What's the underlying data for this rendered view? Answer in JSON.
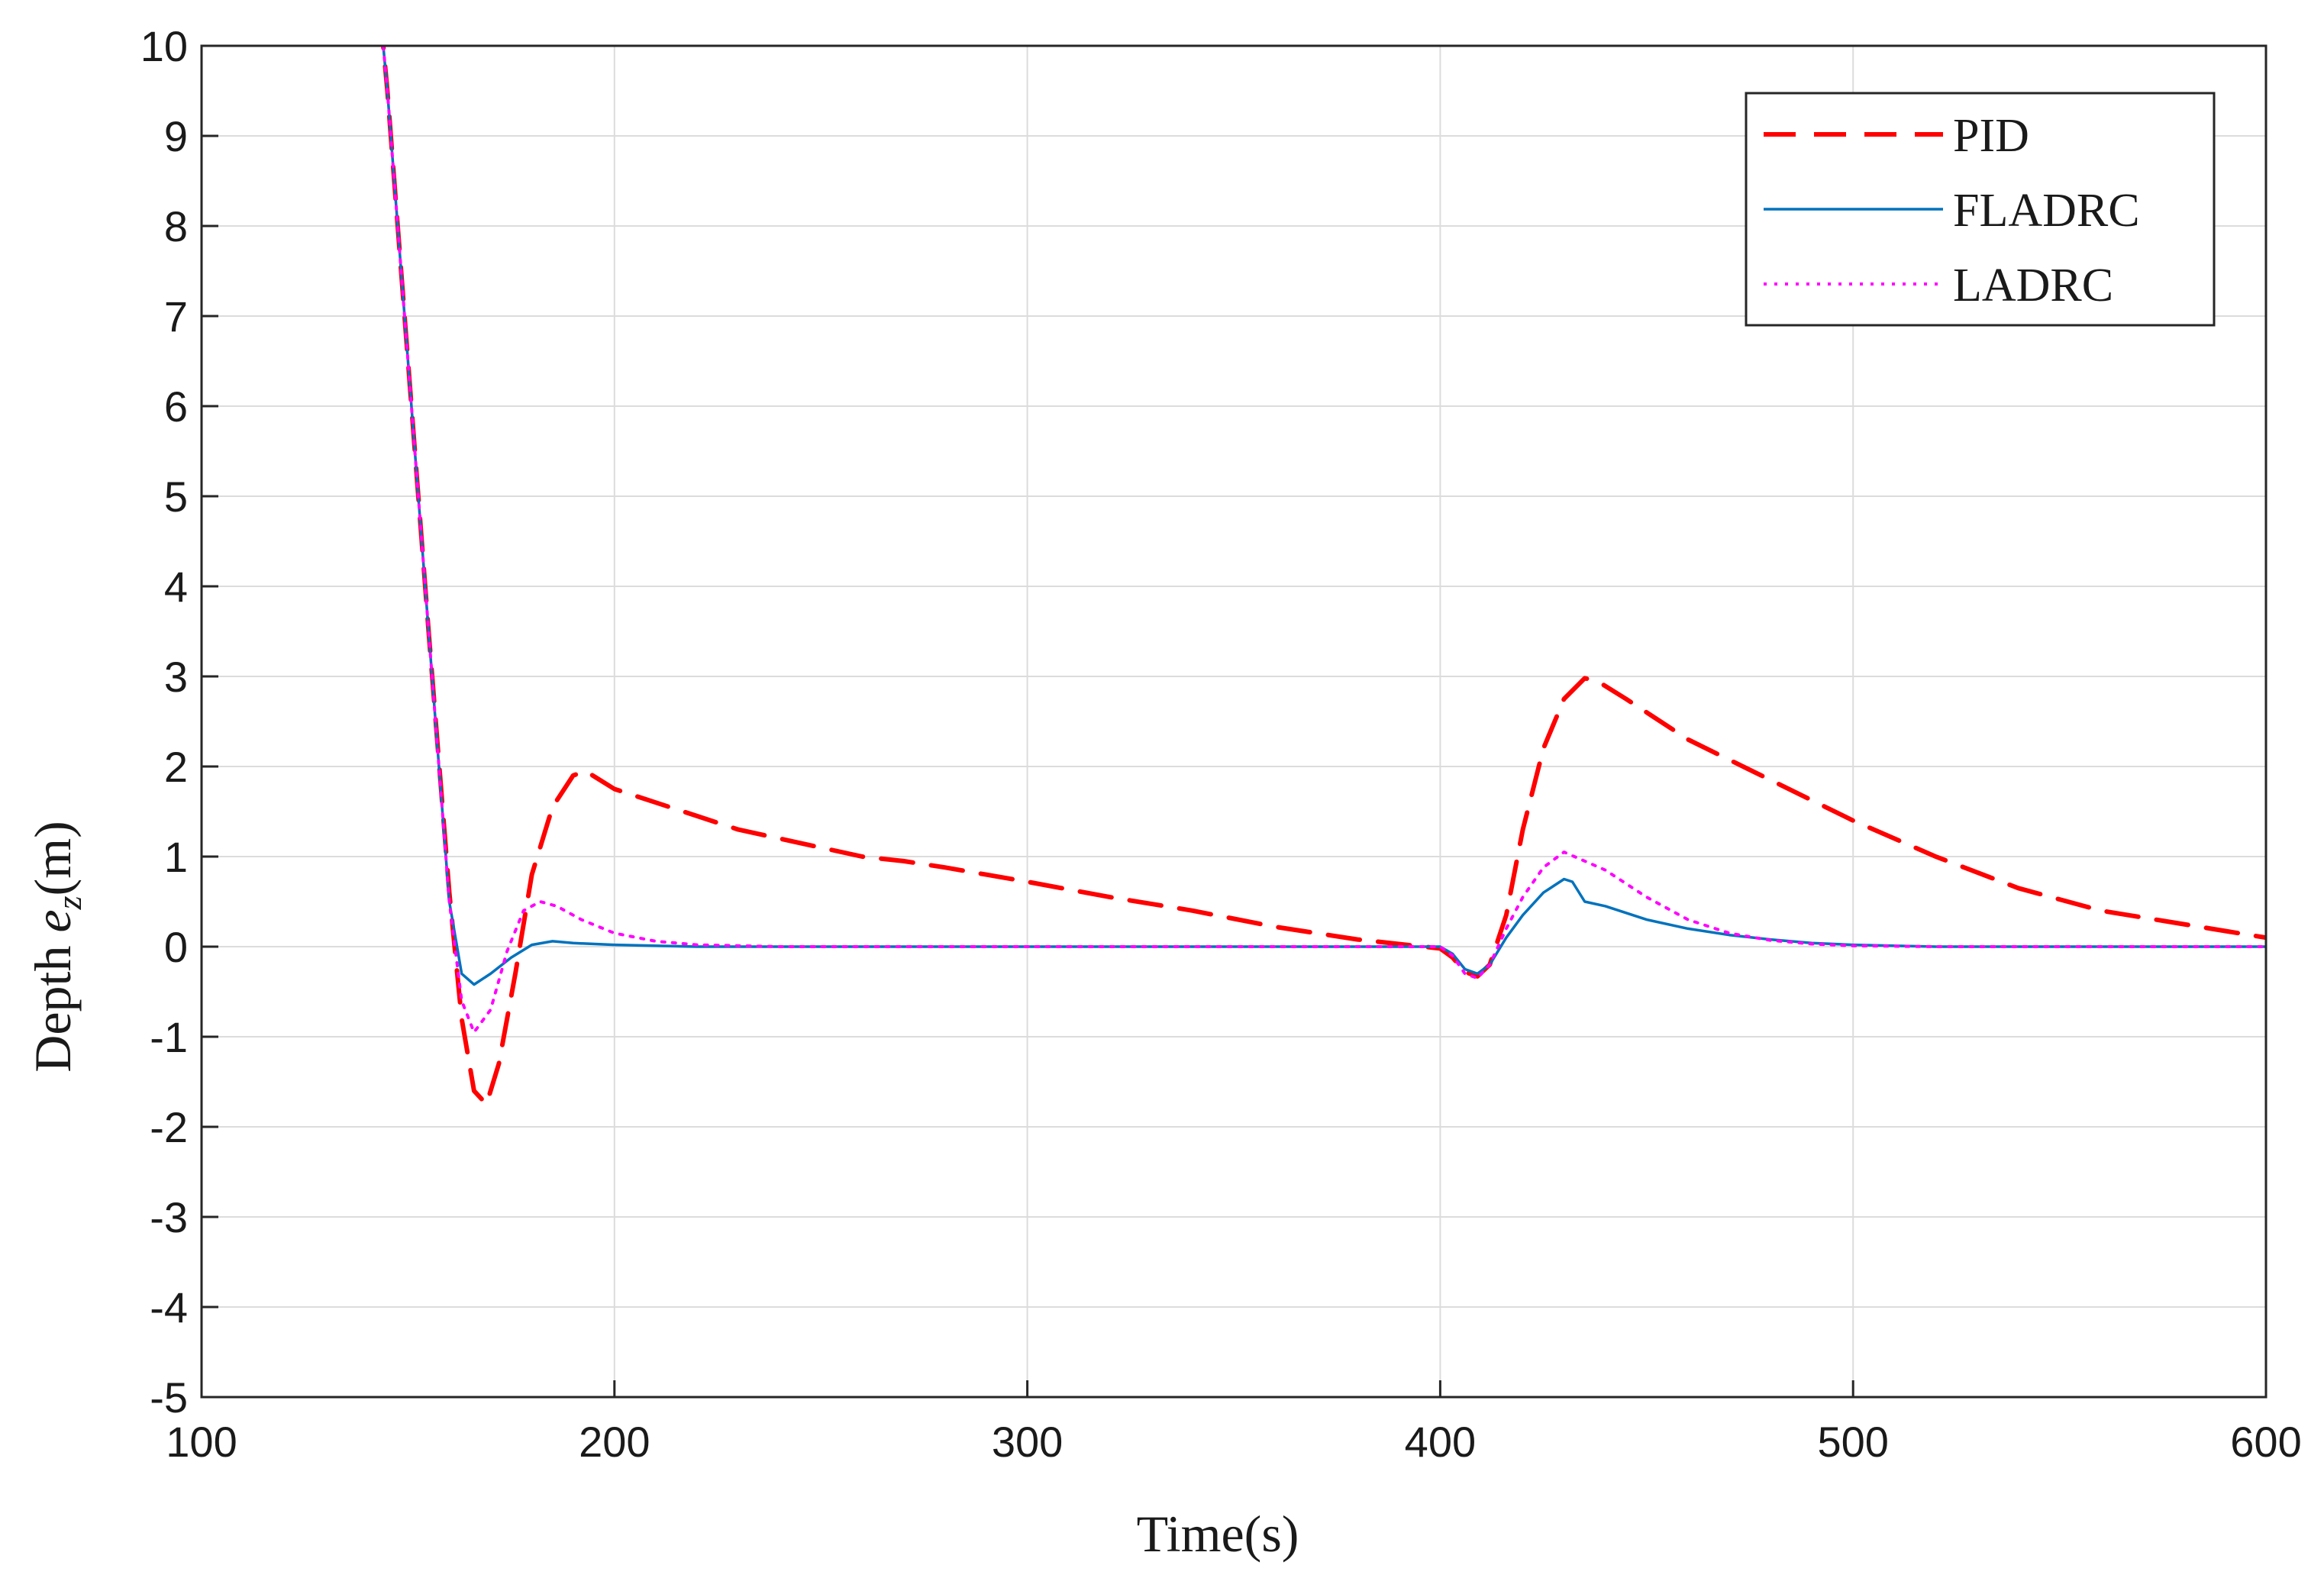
{
  "chart_data": {
    "type": "line",
    "xlabel": "Time(s)",
    "ylabel": "Depth e_z(m)",
    "ylabel_parts": {
      "pre": "Depth ",
      "var": "e",
      "sub": "z",
      "post": "(m)"
    },
    "xlim": [
      100,
      600
    ],
    "ylim": [
      -5,
      10
    ],
    "xticks": [
      100,
      200,
      300,
      400,
      500,
      600
    ],
    "yticks": [
      10,
      9,
      8,
      7,
      6,
      5,
      4,
      3,
      2,
      1,
      0,
      -1,
      -2,
      -3,
      -4,
      -5
    ],
    "grid": true,
    "legend_position": "top-right",
    "series": [
      {
        "name": "PID",
        "color": "#ff0000",
        "style": "dashed",
        "x": [
          140,
          145,
          150,
          155,
          160,
          163,
          166,
          169,
          172,
          176,
          180,
          185,
          190,
          193,
          200,
          210,
          220,
          230,
          240,
          250,
          260,
          270,
          280,
          290,
          300,
          320,
          340,
          360,
          380,
          400,
          403,
          406,
          409,
          412,
          416,
          420,
          425,
          430,
          435,
          438,
          445,
          460,
          480,
          500,
          520,
          540,
          560,
          580,
          600
        ],
        "y": [
          12,
          9.5,
          6.5,
          3.5,
          0.6,
          -0.8,
          -1.6,
          -1.75,
          -1.3,
          -0.3,
          0.8,
          1.55,
          1.9,
          1.95,
          1.75,
          1.6,
          1.45,
          1.3,
          1.2,
          1.1,
          1.0,
          0.95,
          0.88,
          0.8,
          0.72,
          0.55,
          0.4,
          0.22,
          0.08,
          -0.02,
          -0.12,
          -0.28,
          -0.33,
          -0.2,
          0.35,
          1.3,
          2.2,
          2.75,
          2.98,
          2.95,
          2.75,
          2.3,
          1.85,
          1.4,
          1.0,
          0.65,
          0.4,
          0.25,
          0.1
        ]
      },
      {
        "name": "FLADRC",
        "color": "#0072bd",
        "style": "solid",
        "x": [
          140,
          145,
          150,
          155,
          160,
          163,
          166,
          170,
          175,
          180,
          185,
          190,
          200,
          220,
          250,
          300,
          350,
          400,
          403,
          406,
          409,
          412,
          416,
          420,
          425,
          430,
          432,
          435,
          440,
          450,
          460,
          470,
          480,
          490,
          500,
          520,
          550,
          600
        ],
        "y": [
          12,
          9.5,
          6.5,
          3.5,
          0.5,
          -0.3,
          -0.42,
          -0.3,
          -0.12,
          0.02,
          0.06,
          0.04,
          0.02,
          0.0,
          0.0,
          0.0,
          0.0,
          0.0,
          -0.08,
          -0.25,
          -0.3,
          -0.2,
          0.1,
          0.35,
          0.6,
          0.75,
          0.72,
          0.5,
          0.45,
          0.3,
          0.2,
          0.13,
          0.08,
          0.04,
          0.02,
          0.0,
          0.0,
          0.0
        ]
      },
      {
        "name": "LADRC",
        "color": "#ff00ff",
        "style": "dotted",
        "x": [
          140,
          145,
          150,
          155,
          160,
          163,
          166,
          170,
          174,
          178,
          182,
          186,
          192,
          200,
          210,
          220,
          240,
          260,
          300,
          350,
          400,
          403,
          406,
          409,
          412,
          416,
          420,
          425,
          430,
          435,
          440,
          450,
          460,
          470,
          480,
          490,
          500,
          520,
          550,
          600
        ],
        "y": [
          12,
          9.5,
          6.5,
          3.5,
          0.5,
          -0.6,
          -0.95,
          -0.7,
          -0.05,
          0.4,
          0.5,
          0.45,
          0.3,
          0.15,
          0.06,
          0.02,
          0.0,
          0.0,
          0.0,
          0.0,
          0.0,
          -0.1,
          -0.3,
          -0.35,
          -0.2,
          0.2,
          0.55,
          0.88,
          1.05,
          0.95,
          0.85,
          0.55,
          0.3,
          0.15,
          0.07,
          0.03,
          0.01,
          0.0,
          0.0,
          0.0
        ]
      }
    ]
  }
}
